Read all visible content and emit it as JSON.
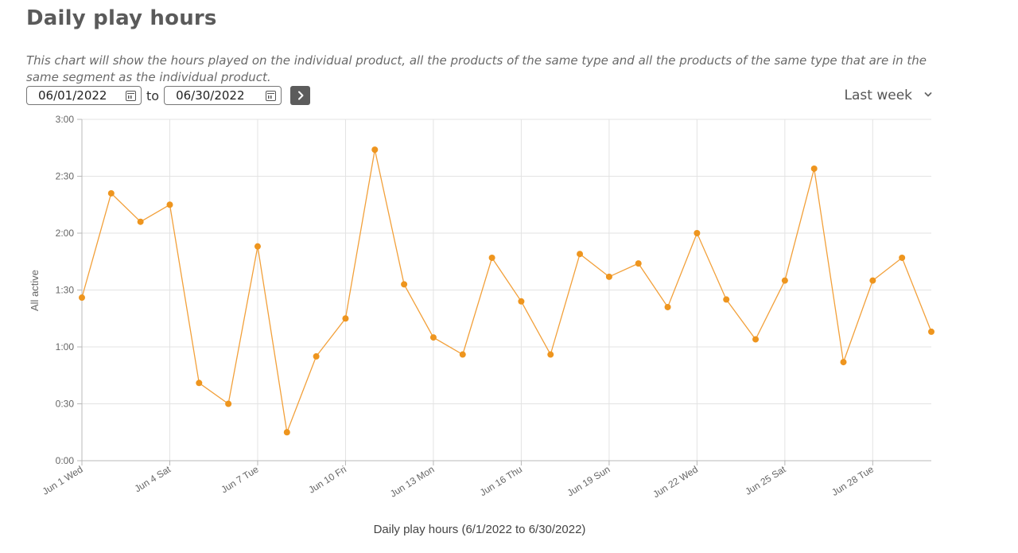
{
  "header": {
    "title": "Daily play hours",
    "description": "This chart will show the hours played on the individual product, all the products of the same type and all the products of the same type that are in the same segment as the individual product."
  },
  "date_range": {
    "from": "06/01/2022",
    "to_label": "to",
    "to": "06/30/2022",
    "preset": "Last week"
  },
  "colors": {
    "series": "#f2a03a",
    "point": "#ee951e",
    "grid": "#e3e3e3",
    "axis": "#b8b8b8"
  },
  "chart_data": {
    "type": "line",
    "title": "",
    "xlabel": "Daily play hours (6/1/2022 to 6/30/2022)",
    "ylabel": "All active",
    "ylim": [
      0,
      180
    ],
    "y_ticks": [
      0,
      30,
      60,
      90,
      120,
      150,
      180
    ],
    "y_tick_labels": [
      "0:00",
      "0:30",
      "1:00",
      "1:30",
      "2:00",
      "2:30",
      "3:00"
    ],
    "x": [
      "Jun 1 Wed",
      "Jun 2 Thu",
      "Jun 3 Fri",
      "Jun 4 Sat",
      "Jun 5 Sun",
      "Jun 6 Mon",
      "Jun 7 Tue",
      "Jun 8 Wed",
      "Jun 9 Thu",
      "Jun 10 Fri",
      "Jun 11 Sat",
      "Jun 12 Sun",
      "Jun 13 Mon",
      "Jun 14 Tue",
      "Jun 15 Wed",
      "Jun 16 Thu",
      "Jun 17 Fri",
      "Jun 18 Sat",
      "Jun 19 Sun",
      "Jun 20 Mon",
      "Jun 21 Tue",
      "Jun 22 Wed",
      "Jun 23 Thu",
      "Jun 24 Fri",
      "Jun 25 Sat",
      "Jun 26 Sun",
      "Jun 27 Mon",
      "Jun 28 Tue",
      "Jun 29 Wed",
      "Jun 30 Thu"
    ],
    "x_tick_labels": [
      "Jun 1 Wed",
      "Jun 4 Sat",
      "Jun 7 Tue",
      "Jun 10 Fri",
      "Jun 13 Mon",
      "Jun 16 Thu",
      "Jun 19 Sun",
      "Jun 22 Wed",
      "Jun 25 Sat",
      "Jun 28 Tue"
    ],
    "x_tick_every": 3,
    "series": [
      {
        "name": "",
        "values": [
          86,
          141,
          126,
          135,
          41,
          30,
          113,
          15,
          55,
          75,
          164,
          93,
          65,
          56,
          107,
          84,
          56,
          109,
          97,
          104,
          81,
          120,
          85,
          64,
          95,
          154,
          52,
          95,
          107,
          68
        ]
      }
    ],
    "grid": true,
    "legend": "none"
  }
}
